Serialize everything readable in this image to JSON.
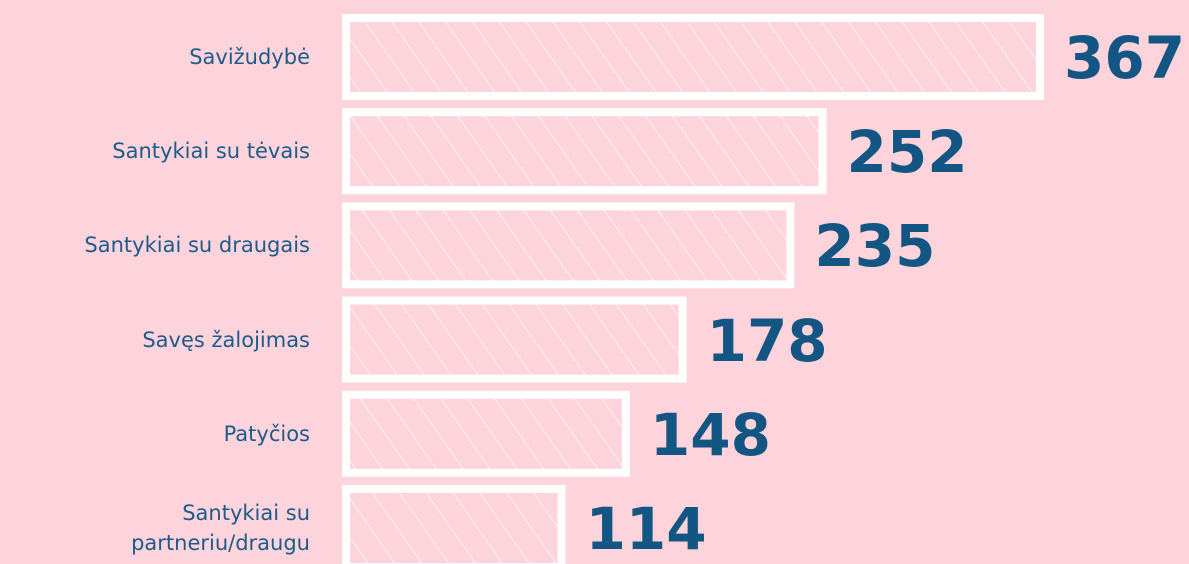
{
  "chart_data": {
    "type": "bar",
    "orientation": "horizontal",
    "categories": [
      "Savižudybė",
      "Santykiai su tėvais",
      "Santykiai su draugais",
      "Savęs žalojimas",
      "Patyčios",
      "Santykiai su partneriu/draugu"
    ],
    "values": [
      367,
      252,
      235,
      178,
      148,
      114
    ],
    "color": "#ffffff"
  }
}
